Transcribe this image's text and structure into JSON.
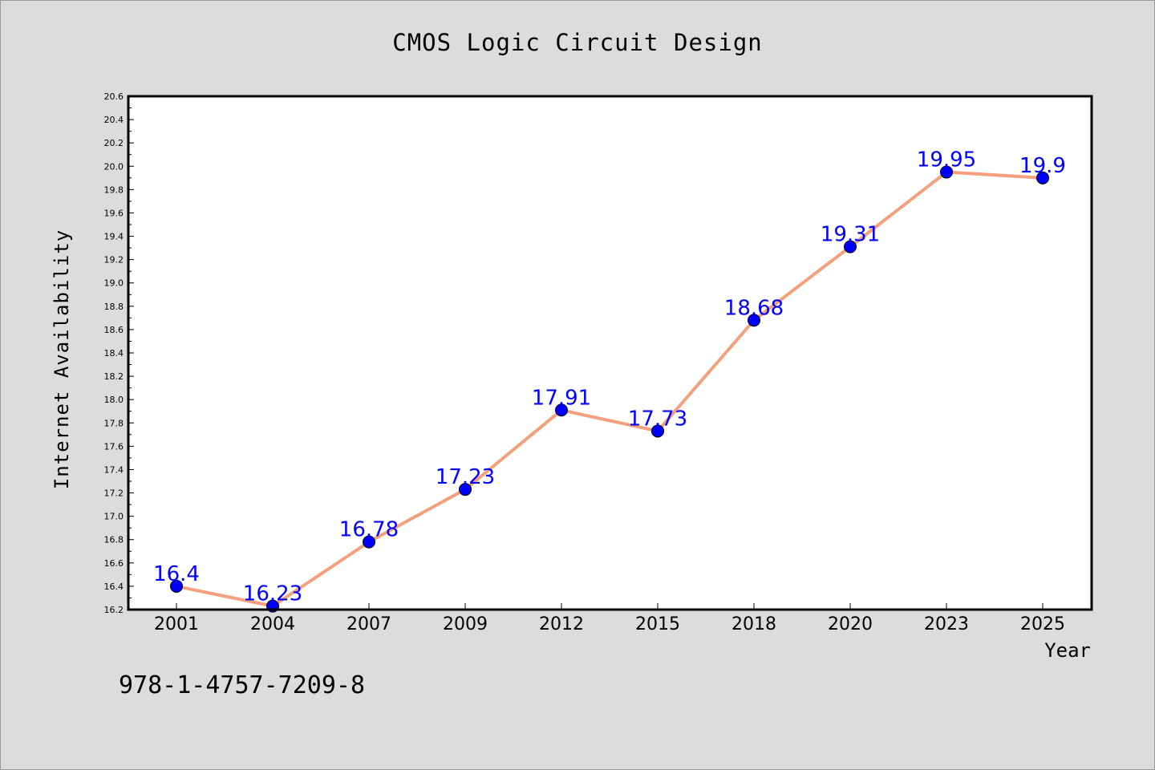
{
  "chart_data": {
    "type": "line",
    "title": "CMOS Logic Circuit Design",
    "xlabel": "Year",
    "ylabel": "Internet Availability",
    "categories": [
      "2001",
      "2004",
      "2007",
      "2009",
      "2012",
      "2015",
      "2018",
      "2020",
      "2023",
      "2025"
    ],
    "series": [
      {
        "values": [
          16.4,
          16.23,
          16.78,
          17.23,
          17.91,
          17.73,
          18.68,
          19.31,
          19.95,
          19.9
        ],
        "data_labels": [
          "16.4",
          "16.23",
          "16.78",
          "17.23",
          "17.91",
          "17.73",
          "18.68",
          "19.31",
          "19.95",
          "19.9"
        ],
        "line_color": "#f4a07c",
        "marker_color": "#0000ff"
      }
    ],
    "ylim": [
      16.2,
      20.6
    ],
    "yticks": [
      "16.2",
      "16.4",
      "16.6",
      "16.8",
      "17.0",
      "17.2",
      "17.4",
      "17.6",
      "17.8",
      "18.0",
      "18.2",
      "18.4",
      "18.6",
      "18.8",
      "19.0",
      "19.2",
      "19.4",
      "19.6",
      "19.8",
      "20.0",
      "20.2",
      "20.4",
      "20.6"
    ],
    "grid": false,
    "legend": false
  },
  "footer_text": "978-1-4757-7209-8",
  "colors": {
    "background": "#dcdcdc",
    "plot_background": "#ffffff",
    "line": "#f4a07c",
    "marker": "#0000ff",
    "data_label": "#0000ff"
  }
}
